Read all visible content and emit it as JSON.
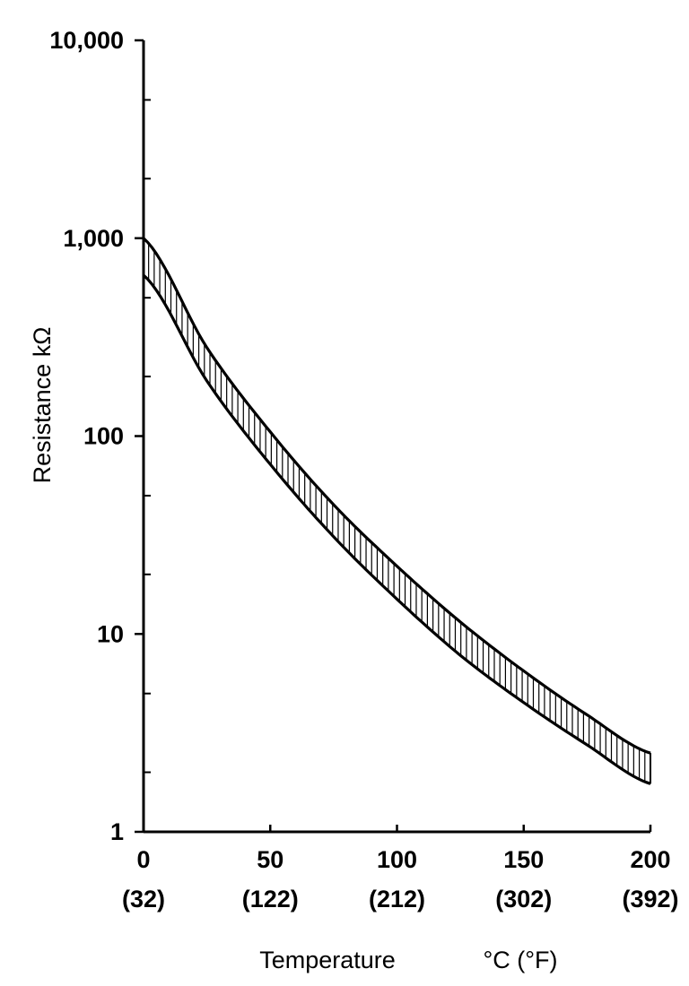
{
  "chart_data": {
    "type": "area",
    "title": "",
    "xlabel": "Temperature",
    "xlabel_units": "°C (°F)",
    "ylabel": "Resistance kΩ",
    "x_range": [
      0,
      200
    ],
    "y_range": [
      1,
      10000
    ],
    "y_scale": "log",
    "grid": false,
    "x_ticks": [
      0,
      50,
      100,
      150,
      200
    ],
    "x_tick_labels": [
      "0",
      "50",
      "100",
      "150",
      "200"
    ],
    "x_tick_labels_f": [
      "(32)",
      "(122)",
      "(212)",
      "(302)",
      "(392)"
    ],
    "y_ticks": [
      1,
      10,
      100,
      1000,
      10000
    ],
    "y_tick_labels": [
      "1",
      "10",
      "100",
      "1,000",
      "10,000"
    ],
    "band": {
      "fill_pattern": "vertical-hatch",
      "x": [
        0,
        25,
        50,
        75,
        100,
        125,
        150,
        175,
        200
      ],
      "upper": [
        1000,
        280,
        105,
        45,
        22,
        11.5,
        6.5,
        3.9,
        2.5
      ],
      "lower": [
        650,
        190,
        72,
        31,
        15,
        7.8,
        4.5,
        2.75,
        1.75
      ]
    }
  }
}
